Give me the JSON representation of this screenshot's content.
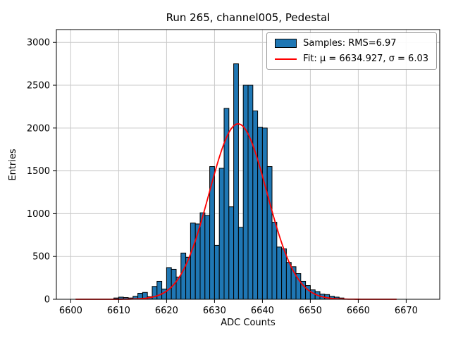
{
  "chart_data": {
    "type": "bar",
    "title": "Run 265, channel005, Pedestal",
    "xlabel": "ADC Counts",
    "ylabel": "Entries",
    "xlim": [
      6597,
      6677
    ],
    "ylim": [
      0,
      3150
    ],
    "xticks": [
      6600,
      6610,
      6620,
      6630,
      6640,
      6650,
      6660,
      6670
    ],
    "yticks": [
      0,
      500,
      1000,
      1500,
      2000,
      2500,
      3000
    ],
    "grid": true,
    "bar_color": "#1f77b4",
    "bar_edge_color": "#000000",
    "bin_start": 6609,
    "bin_width": 1,
    "counts": [
      15,
      25,
      20,
      15,
      35,
      70,
      80,
      30,
      150,
      210,
      120,
      370,
      350,
      260,
      540,
      490,
      890,
      880,
      1010,
      980,
      1550,
      630,
      1530,
      2230,
      1080,
      2750,
      840,
      2500,
      2500,
      2200,
      2010,
      2000,
      1550,
      900,
      610,
      590,
      430,
      380,
      300,
      210,
      160,
      110,
      90,
      60,
      55,
      35,
      25,
      15
    ],
    "fit": {
      "mu": 6634.927,
      "sigma": 6.03,
      "amplitude": 2050,
      "color": "#ff0000",
      "x_start": 6601,
      "x_end": 6668
    },
    "legend": {
      "samples_label": "Samples: RMS=6.97",
      "fit_label": "Fit: μ = 6634.927, σ = 6.03"
    },
    "rms": 6.97
  }
}
